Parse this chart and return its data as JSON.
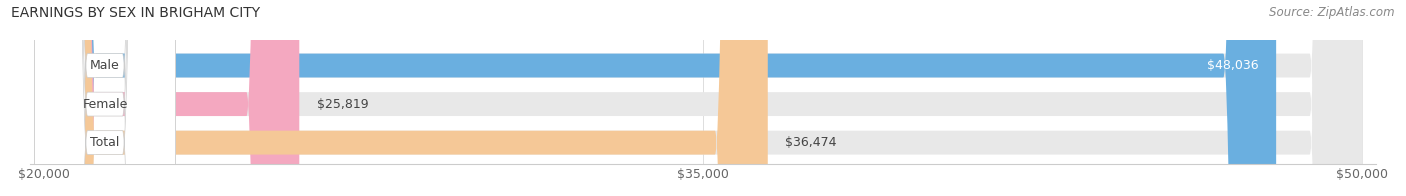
{
  "title": "EARNINGS BY SEX IN BRIGHAM CITY",
  "source": "Source: ZipAtlas.com",
  "categories": [
    "Male",
    "Female",
    "Total"
  ],
  "values": [
    48036,
    25819,
    36474
  ],
  "bar_colors": [
    "#6aafe0",
    "#f4a8c0",
    "#f5c897"
  ],
  "bar_bg_color": "#e8e8e8",
  "label_colors": [
    "#ffffff",
    "#555555",
    "#555555"
  ],
  "xmin": 20000,
  "xmax": 50000,
  "xticks": [
    20000,
    35000,
    50000
  ],
  "xtick_labels": [
    "$20,000",
    "$35,000",
    "$50,000"
  ],
  "value_labels": [
    "$48,036",
    "$25,819",
    "$36,474"
  ],
  "title_fontsize": 10,
  "source_fontsize": 8.5,
  "bar_label_fontsize": 9,
  "axis_label_fontsize": 9,
  "figsize": [
    14.06,
    1.96
  ],
  "dpi": 100
}
